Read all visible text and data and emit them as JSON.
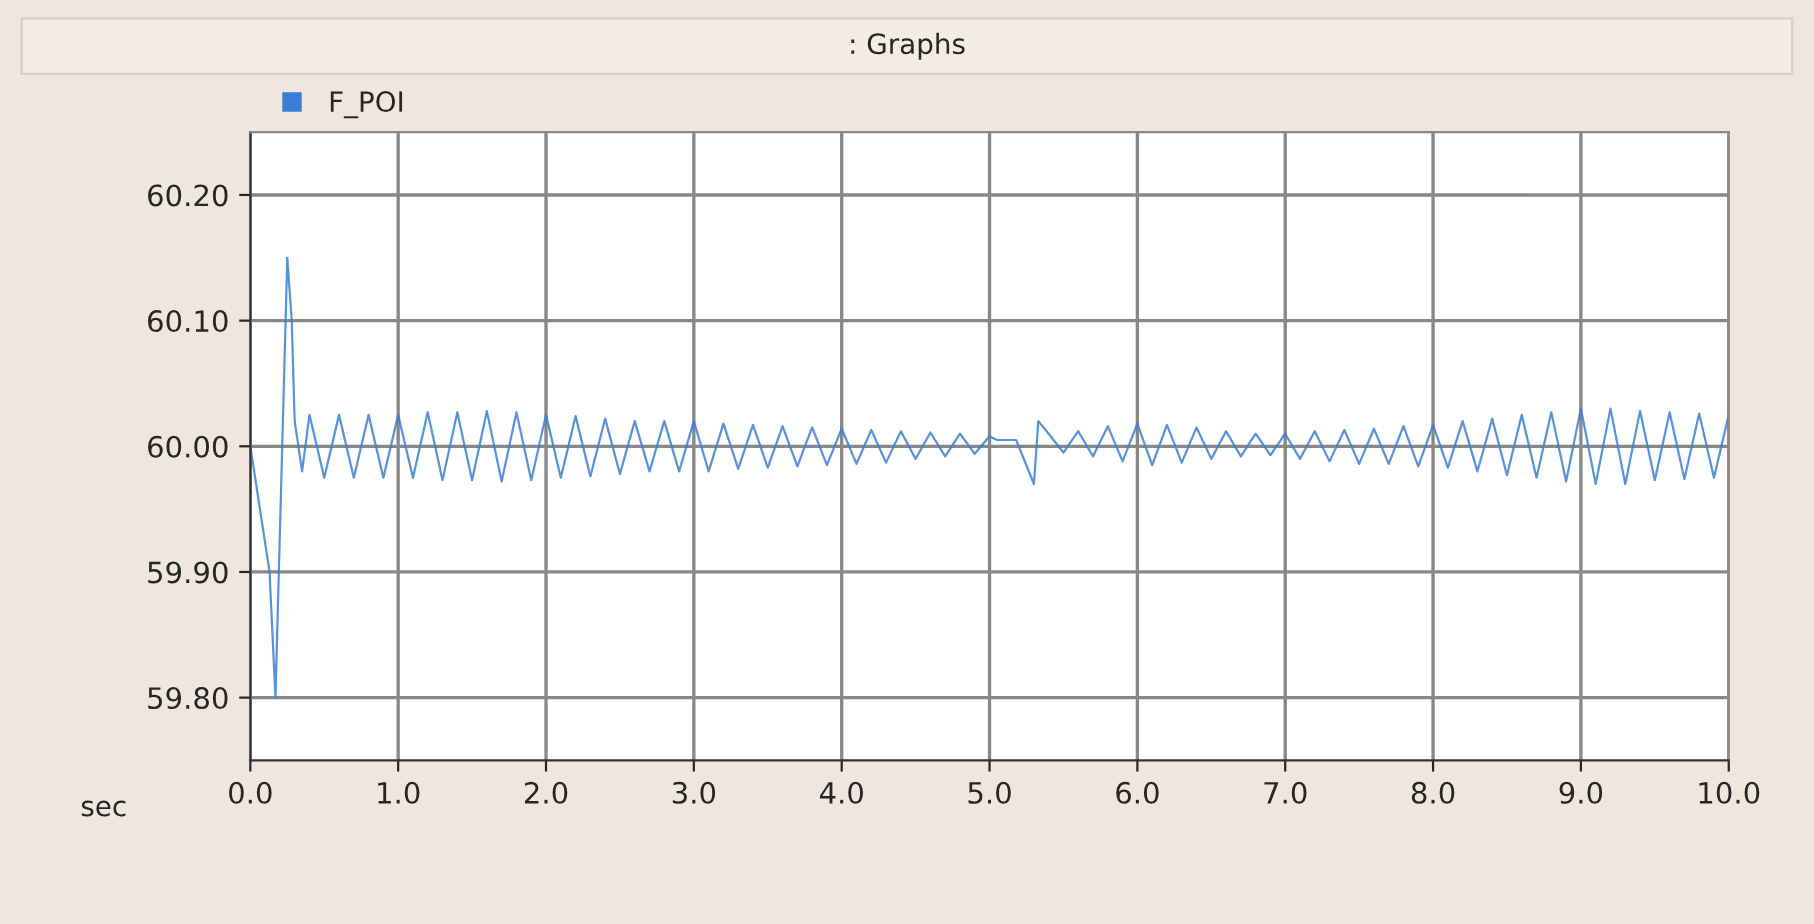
{
  "chart_data": {
    "type": "line",
    "title": ": Graphs",
    "xlabel": "sec",
    "xlim": [
      0,
      10
    ],
    "ylim": [
      59.75,
      60.25
    ],
    "xticks": [
      {
        "value": 0,
        "label": "0.0"
      },
      {
        "value": 1,
        "label": "1.0"
      },
      {
        "value": 2,
        "label": "2.0"
      },
      {
        "value": 3,
        "label": "3.0"
      },
      {
        "value": 4,
        "label": "4.0"
      },
      {
        "value": 5,
        "label": "5.0"
      },
      {
        "value": 6,
        "label": "6.0"
      },
      {
        "value": 7,
        "label": "7.0"
      },
      {
        "value": 8,
        "label": "8.0"
      },
      {
        "value": 9,
        "label": "9.0"
      },
      {
        "value": 10,
        "label": "10.0"
      }
    ],
    "yticks": [
      {
        "value": 59.8,
        "label": "59.80"
      },
      {
        "value": 59.9,
        "label": "59.90"
      },
      {
        "value": 60.0,
        "label": "60.00"
      },
      {
        "value": 60.1,
        "label": "60.10"
      },
      {
        "value": 60.2,
        "label": "60.20"
      }
    ],
    "grid": true,
    "legend": "top left",
    "marker": "none",
    "line_style": "solid",
    "series": [
      {
        "name": "F_POI",
        "color": "#3a7fd5",
        "x": [
          0.0,
          0.1,
          0.13,
          0.15,
          0.17,
          0.2,
          0.25,
          0.28,
          0.3,
          0.35,
          0.4,
          0.5,
          0.6,
          0.7,
          0.8,
          0.9,
          1.0,
          1.1,
          1.2,
          1.3,
          1.4,
          1.5,
          1.6,
          1.7,
          1.8,
          1.9,
          2.0,
          2.1,
          2.2,
          2.3,
          2.4,
          2.5,
          2.6,
          2.7,
          2.8,
          2.9,
          3.0,
          3.1,
          3.2,
          3.3,
          3.4,
          3.5,
          3.6,
          3.7,
          3.8,
          3.9,
          4.0,
          4.1,
          4.2,
          4.3,
          4.4,
          4.5,
          4.6,
          4.7,
          4.8,
          4.9,
          5.0,
          5.05,
          5.18,
          5.2,
          5.22,
          5.25,
          5.28,
          5.3,
          5.33,
          5.4,
          5.5,
          5.6,
          5.7,
          5.8,
          5.9,
          6.0,
          6.1,
          6.2,
          6.3,
          6.4,
          6.5,
          6.6,
          6.7,
          6.8,
          6.9,
          7.0,
          7.1,
          7.2,
          7.3,
          7.4,
          7.5,
          7.6,
          7.7,
          7.8,
          7.9,
          8.0,
          8.1,
          8.2,
          8.3,
          8.4,
          8.5,
          8.6,
          8.7,
          8.8,
          8.9,
          9.0,
          9.1,
          9.2,
          9.3,
          9.4,
          9.5,
          9.6,
          9.7,
          9.8,
          9.9,
          10.0
        ],
        "values": [
          60.0,
          null,
          59.9,
          null,
          59.8,
          null,
          60.15,
          60.1,
          60.02,
          59.98,
          60.025,
          59.975,
          60.025,
          59.975,
          60.025,
          59.975,
          60.025,
          59.975,
          60.027,
          59.973,
          60.027,
          59.973,
          60.028,
          59.972,
          60.027,
          59.973,
          60.025,
          59.975,
          60.024,
          59.976,
          60.022,
          59.978,
          60.02,
          59.98,
          60.02,
          59.98,
          60.02,
          59.98,
          60.018,
          59.982,
          60.017,
          59.983,
          60.016,
          59.984,
          60.015,
          59.985,
          60.014,
          59.986,
          60.013,
          59.987,
          60.012,
          59.99,
          60.011,
          59.992,
          60.01,
          59.994,
          60.008,
          60.005,
          60.005,
          null,
          null,
          null,
          null,
          59.97,
          60.02,
          60.01,
          59.995,
          60.012,
          59.992,
          60.016,
          59.988,
          60.018,
          59.985,
          60.017,
          59.987,
          60.015,
          59.99,
          60.012,
          59.992,
          60.01,
          59.993,
          60.01,
          59.99,
          60.012,
          59.988,
          60.013,
          59.986,
          60.014,
          59.986,
          60.016,
          59.984,
          60.017,
          59.983,
          60.02,
          59.98,
          60.022,
          59.977,
          60.025,
          59.975,
          60.027,
          59.972,
          60.03,
          59.97,
          60.03,
          59.97,
          60.028,
          59.973,
          60.027,
          59.974,
          60.026,
          59.975,
          60.025
        ]
      }
    ]
  }
}
